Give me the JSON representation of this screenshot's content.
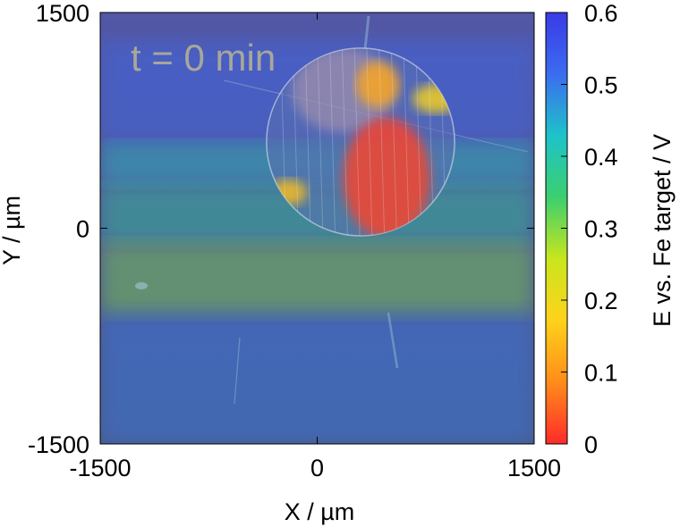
{
  "chart_data": {
    "type": "heatmap",
    "annotation": "t = 0 min",
    "xlabel": "X / µm",
    "ylabel": "Y / µm",
    "xlim": [
      -1500,
      1500
    ],
    "ylim": [
      -1500,
      1500
    ],
    "xticks": [
      {
        "value": -1500,
        "label": "-1500"
      },
      {
        "value": 0,
        "label": "0"
      },
      {
        "value": 1500,
        "label": "1500"
      }
    ],
    "yticks": [
      {
        "value": 1500,
        "label": "1500"
      },
      {
        "value": 0,
        "label": "0"
      },
      {
        "value": -1500,
        "label": "-1500"
      }
    ],
    "colorbar": {
      "label": "E vs. Fe target / V",
      "range": [
        0,
        0.6
      ],
      "ticks": [
        {
          "value": 0.6,
          "label": "0.6"
        },
        {
          "value": 0.5,
          "label": "0.5"
        },
        {
          "value": 0.4,
          "label": "0.4"
        },
        {
          "value": 0.3,
          "label": "0.3"
        },
        {
          "value": 0.2,
          "label": "0.2"
        },
        {
          "value": 0.1,
          "label": "0.1"
        },
        {
          "value": 0,
          "label": "0"
        }
      ],
      "colors": [
        "#ff2a2a",
        "#ff8c1a",
        "#ffd21a",
        "#c8e61e",
        "#3ccf6e",
        "#1ec3c8",
        "#3b6cf0",
        "#3a3ae6"
      ]
    },
    "sample_disk": {
      "center": [
        300,
        600
      ],
      "radius": 650
    },
    "scan_bands": [
      {
        "y_from": 600,
        "y_to": 1300,
        "potential": 0.52
      },
      {
        "y_from": 300,
        "y_to": 600,
        "potential": 0.42
      },
      {
        "y_from": -100,
        "y_to": 300,
        "potential": 0.38
      },
      {
        "y_from": -600,
        "y_to": -100,
        "potential": 0.3
      },
      {
        "y_from": -1500,
        "y_to": -600,
        "potential": 0.5
      }
    ],
    "hotspots": [
      {
        "x": 480,
        "y": 350,
        "rx": 300,
        "ry": 420,
        "potential": 0.02
      },
      {
        "x": 420,
        "y": 1000,
        "rx": 150,
        "ry": 160,
        "potential": 0.12
      },
      {
        "x": 820,
        "y": 900,
        "rx": 160,
        "ry": 100,
        "potential": 0.18
      },
      {
        "x": -200,
        "y": 250,
        "rx": 130,
        "ry": 90,
        "potential": 0.15
      }
    ]
  }
}
